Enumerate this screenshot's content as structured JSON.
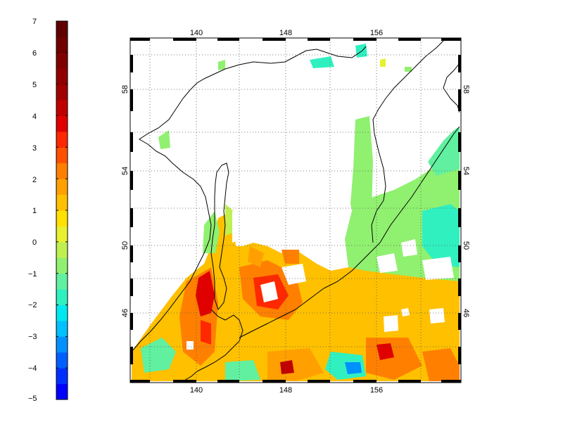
{
  "colorbar": {
    "min": -5,
    "max": 7,
    "tick_labels": [
      "7",
      "6",
      "5",
      "4",
      "3",
      "2",
      "1",
      "0",
      "−1",
      "−2",
      "−3",
      "−4",
      "−5"
    ],
    "band_colors": [
      "#0000ff",
      "#0030ff",
      "#0060ff",
      "#0090ff",
      "#00c0ff",
      "#00e8f0",
      "#30f0c0",
      "#60f0a0",
      "#90f070",
      "#c0f050",
      "#e8f030",
      "#ffe000",
      "#ffc000",
      "#ffa000",
      "#ff8000",
      "#ff5000",
      "#ff2800",
      "#e00000",
      "#c00000",
      "#a00000",
      "#900000",
      "#800000",
      "#700000",
      "#600000"
    ]
  },
  "map": {
    "lon_labels": [
      "140",
      "148",
      "156"
    ],
    "lat_labels": [
      "58",
      "54",
      "50",
      "46"
    ],
    "lon_range": [
      135.5,
      164.5
    ],
    "lat_range": [
      42.3,
      58.6
    ],
    "grid": "dotted",
    "frame": "black-white checker border"
  }
}
